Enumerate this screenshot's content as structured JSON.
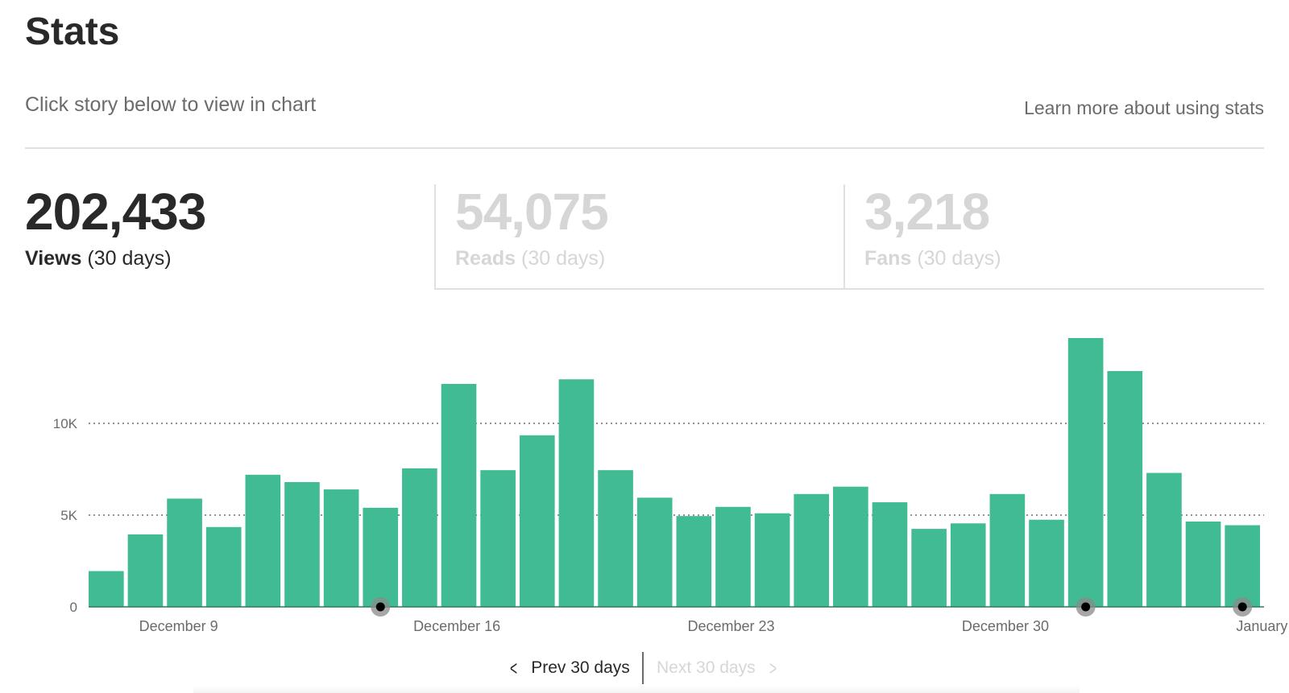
{
  "header": {
    "title": "Stats",
    "subtitle": "Click story below to view in chart",
    "learn_more": "Learn more about using stats"
  },
  "metrics": {
    "views": {
      "value": "202,433",
      "label": "Views",
      "period": "(30 days)"
    },
    "reads": {
      "value": "54,075",
      "label": "Reads",
      "period": "(30 days)"
    },
    "fans": {
      "value": "3,218",
      "label": "Fans",
      "period": "(30 days)"
    }
  },
  "pager": {
    "prev": "Prev 30 days",
    "next": "Next 30 days"
  },
  "colors": {
    "bar": "#41bb93",
    "active_text": "#292929",
    "muted_text": "#d6d6d6",
    "gridline": "#6b6b6b",
    "marker": "#000000"
  },
  "chart_data": {
    "type": "bar",
    "title": "Views (30 days)",
    "days": [
      "Dec 8",
      "Dec 9",
      "Dec 10",
      "Dec 11",
      "Dec 12",
      "Dec 13",
      "Dec 14",
      "Dec 15",
      "Dec 16",
      "Dec 17",
      "Dec 18",
      "Dec 19",
      "Dec 20",
      "Dec 21",
      "Dec 22",
      "Dec 23",
      "Dec 24",
      "Dec 25",
      "Dec 26",
      "Dec 27",
      "Dec 28",
      "Dec 29",
      "Dec 30",
      "Dec 31",
      "Jan 1",
      "Jan 2",
      "Jan 3",
      "Jan 4",
      "Jan 5",
      "Jan 6"
    ],
    "values": [
      1950,
      3950,
      5900,
      4350,
      7200,
      6800,
      6400,
      5400,
      7550,
      12150,
      7450,
      9350,
      12400,
      7450,
      5950,
      4950,
      5450,
      5100,
      6150,
      6550,
      5700,
      4250,
      4550,
      6150,
      4750,
      14650,
      12850,
      7300,
      4650,
      4450
    ],
    "y_ticks": [
      {
        "value": 0,
        "label": "0"
      },
      {
        "value": 5000,
        "label": "5K"
      },
      {
        "value": 10000,
        "label": "10K"
      }
    ],
    "ylim": [
      0,
      16000
    ],
    "gridlines": [
      5000,
      10000
    ],
    "x_tick_labels": [
      {
        "index": 1,
        "label": "December 9"
      },
      {
        "index": 8,
        "label": "December 16"
      },
      {
        "index": 15,
        "label": "December 23"
      },
      {
        "index": 22,
        "label": "December 30"
      },
      {
        "index": 29,
        "label": "January"
      }
    ],
    "story_markers": [
      7,
      25,
      29
    ]
  }
}
